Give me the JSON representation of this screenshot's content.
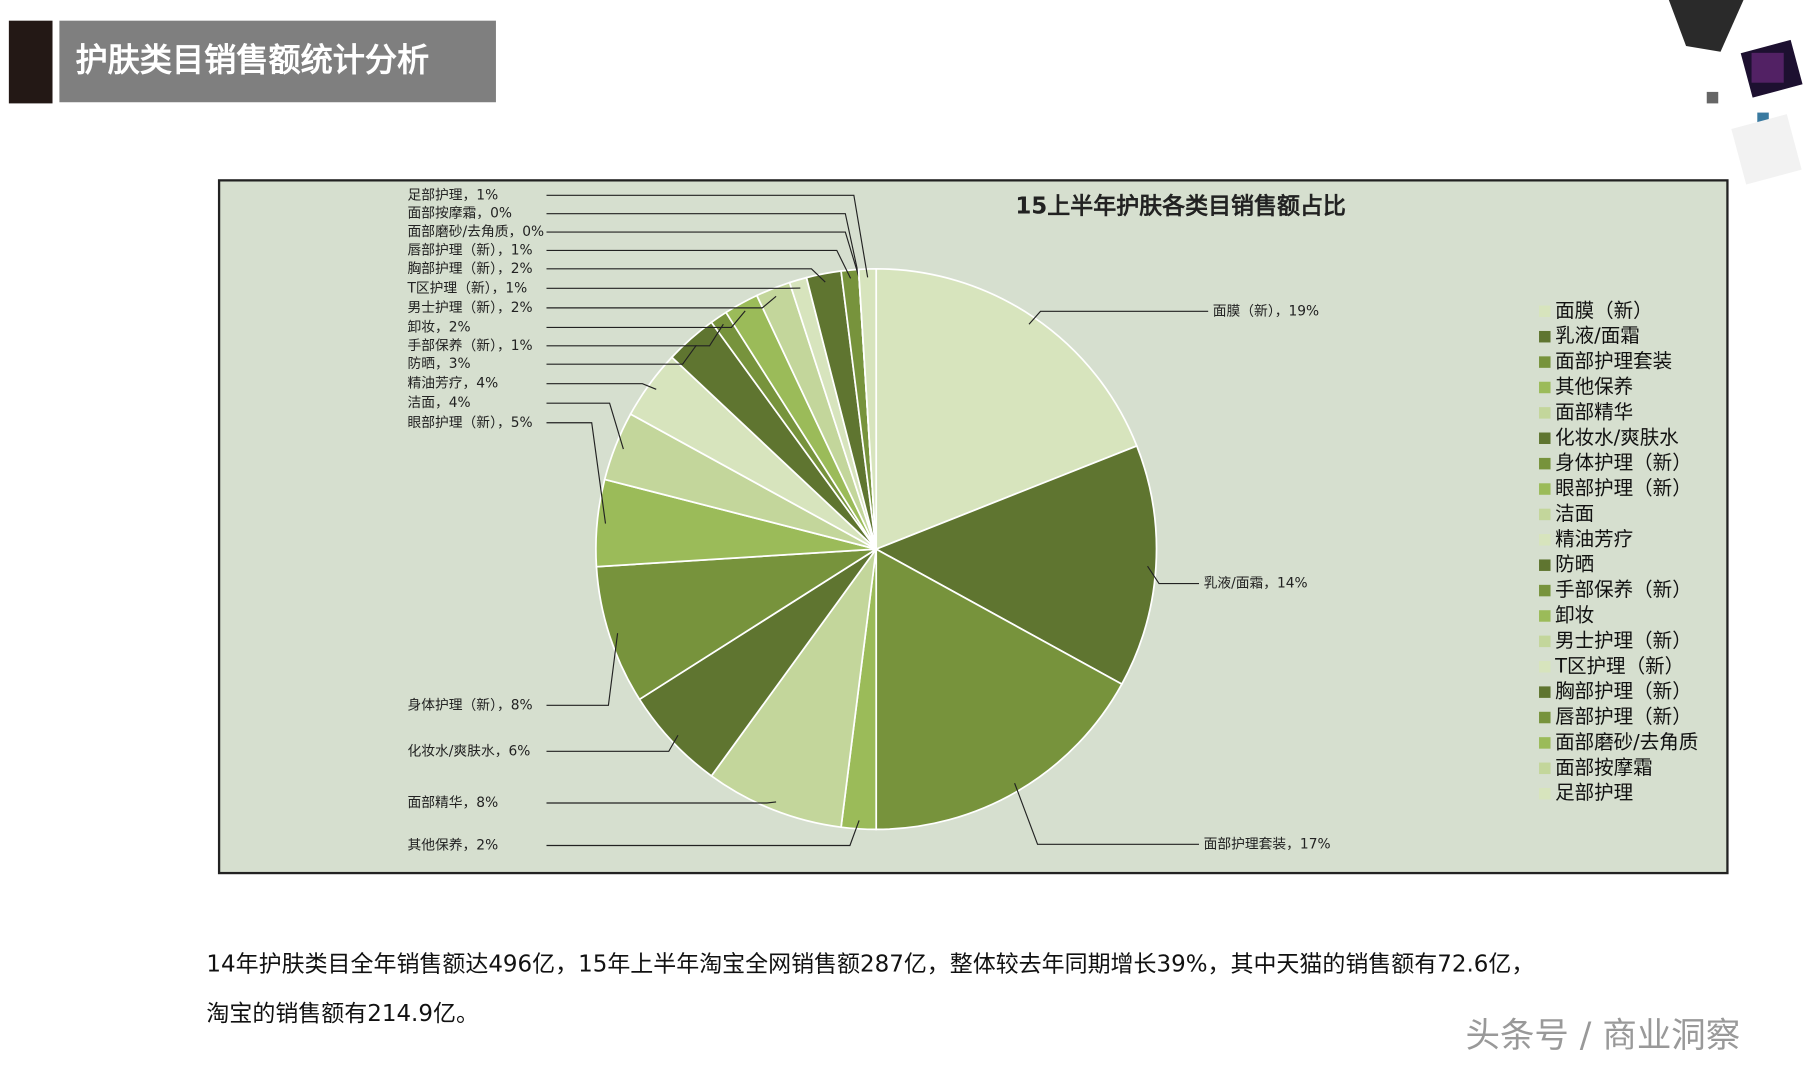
{
  "header": {
    "title": "护肤类目销售额统计分析"
  },
  "chart_data": {
    "type": "pie",
    "title": "15上半年护肤各类目销售额占比",
    "categories": [
      "面膜（新）",
      "乳液/面霜",
      "面部护理套装",
      "其他保养",
      "面部精华",
      "化妆水/爽肤水",
      "身体护理（新）",
      "眼部护理（新）",
      "洁面",
      "精油芳疗",
      "防晒",
      "手部保养（新）",
      "卸妆",
      "男士护理（新）",
      "T区护理（新）",
      "胸部护理（新）",
      "唇部护理（新）",
      "面部磨砂/去角质",
      "面部按摩霜",
      "足部护理"
    ],
    "values": [
      19,
      14,
      17,
      2,
      8,
      6,
      8,
      5,
      4,
      4,
      3,
      1,
      2,
      2,
      1,
      2,
      1,
      0,
      0,
      1
    ],
    "value_labels": [
      "面膜（新），19%",
      "乳液/面霜，14%",
      "面部护理套装，17%",
      "其他保养，2%",
      "面部精华，8%",
      "化妆水/爽肤水，6%",
      "身体护理（新），8%",
      "眼部护理（新），5%",
      "洁面，4%",
      "精油芳疗，4%",
      "防晒，3%",
      "手部保养（新），1%",
      "卸妆，2%",
      "男士护理（新），2%",
      "T区护理（新），1%",
      "胸部护理（新），2%",
      "唇部护理（新），1%",
      "面部磨砂/去角质，0%",
      "面部按摩霜，0%",
      "足部护理，1%"
    ],
    "colors": [
      "#d7e4bd",
      "#5f7530",
      "#77933c",
      "#9bbb59",
      "#c3d69b",
      "#5f7530",
      "#77933c",
      "#9bbb59",
      "#c3d69b",
      "#d7e4bd",
      "#5f7530",
      "#77933c",
      "#9bbb59",
      "#c3d69b",
      "#d7e4bd",
      "#5f7530",
      "#77933c",
      "#9bbb59",
      "#c3d69b",
      "#d7e4bd"
    ],
    "legend": "right"
  },
  "body": {
    "lines": [
      "14年护肤类目全年销售额达496亿，15年上半年淘宝全网销售额287亿，整体较去年同期增长39%，其中天猫的销售额有72.6亿，",
      "淘宝的销售额有214.9亿。"
    ]
  },
  "watermark": "头条号 / 商业洞察"
}
